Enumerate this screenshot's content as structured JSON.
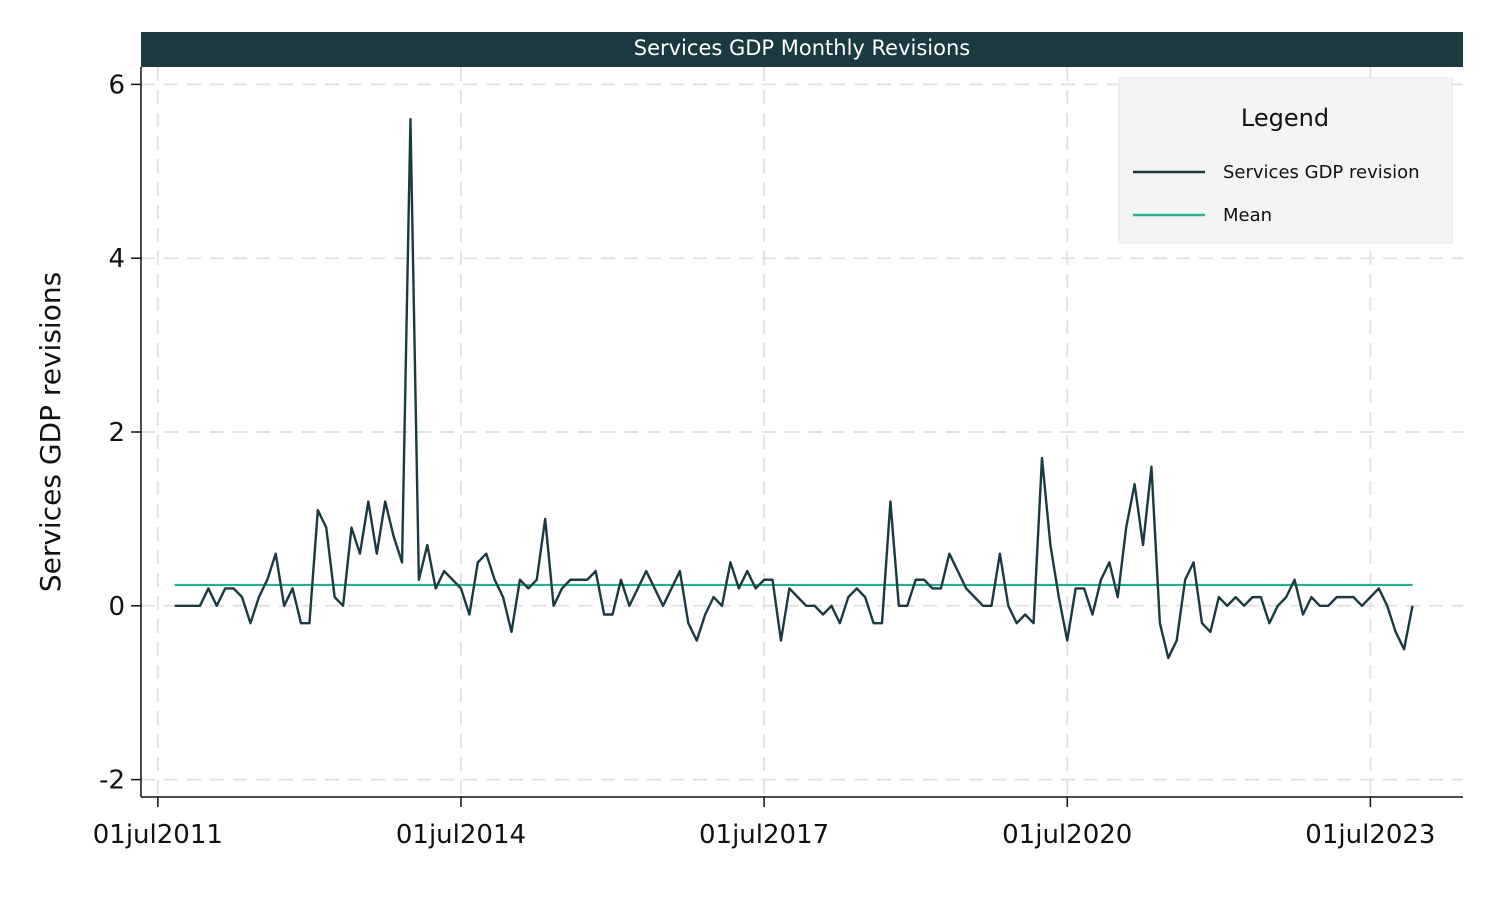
{
  "chart_data": {
    "type": "line",
    "title": "Services GDP Monthly Revisions",
    "ylabel": "Services GDP revisions",
    "xlabel": "",
    "ylim": [
      -2.2,
      6.2
    ],
    "yticks": [
      -2,
      0,
      2,
      4,
      6
    ],
    "xlim": [
      "2011-05",
      "2024-06"
    ],
    "xticks": [
      {
        "date": "2011-07",
        "label": "01jul2011"
      },
      {
        "date": "2014-07",
        "label": "01jul2014"
      },
      {
        "date": "2017-07",
        "label": "01jul2017"
      },
      {
        "date": "2020-07",
        "label": "01jul2020"
      },
      {
        "date": "2023-07",
        "label": "01jul2023"
      }
    ],
    "grid": true,
    "legend": {
      "title": "Legend",
      "position": "top-right"
    },
    "colors": {
      "series": "#1b3a40",
      "mean": "#1db393",
      "title_bar": "#1b3a40",
      "legend_bg": "#f4f4f4"
    },
    "series": [
      {
        "name": "Services GDP revision",
        "start": "2011-09",
        "frequency": "monthly",
        "values": [
          0,
          0,
          0,
          0,
          0.2,
          0,
          0.2,
          0.2,
          0.1,
          -0.2,
          0.1,
          0.3,
          0.6,
          0,
          0.2,
          -0.2,
          -0.2,
          1.1,
          0.9,
          0.1,
          0,
          0.9,
          0.6,
          1.2,
          0.6,
          1.2,
          0.8,
          0.5,
          5.6,
          0.3,
          0.7,
          0.2,
          0.4,
          0.3,
          0.2,
          -0.1,
          0.5,
          0.6,
          0.3,
          0.1,
          -0.3,
          0.3,
          0.2,
          0.3,
          1.0,
          0,
          0.2,
          0.3,
          0.3,
          0.3,
          0.4,
          -0.1,
          -0.1,
          0.3,
          0,
          0.2,
          0.4,
          0.2,
          0,
          0.2,
          0.4,
          -0.2,
          -0.4,
          -0.1,
          0.1,
          0,
          0.5,
          0.2,
          0.4,
          0.2,
          0.3,
          0.3,
          -0.4,
          0.2,
          0.1,
          0,
          0,
          -0.1,
          0,
          -0.2,
          0.1,
          0.2,
          0.1,
          -0.2,
          -0.2,
          1.2,
          0,
          0,
          0.3,
          0.3,
          0.2,
          0.2,
          0.6,
          0.4,
          0.2,
          0.1,
          0,
          0,
          0.6,
          0,
          -0.2,
          -0.1,
          -0.2,
          1.7,
          0.7,
          0.1,
          -0.4,
          0.2,
          0.2,
          -0.1,
          0.3,
          0.5,
          0.1,
          0.9,
          1.4,
          0.7,
          1.6,
          -0.2,
          -0.6,
          -0.4,
          0.3,
          0.5,
          -0.2,
          -0.3,
          0.1,
          0,
          0.1,
          0,
          0.1,
          0.1,
          -0.2,
          0,
          0.1,
          0.3,
          -0.1,
          0.1,
          0,
          0,
          0.1,
          0.1,
          0.1,
          0,
          0.1,
          0.2,
          0,
          -0.3,
          -0.5,
          0
        ]
      },
      {
        "name": "Mean",
        "value": 0.24
      }
    ]
  }
}
